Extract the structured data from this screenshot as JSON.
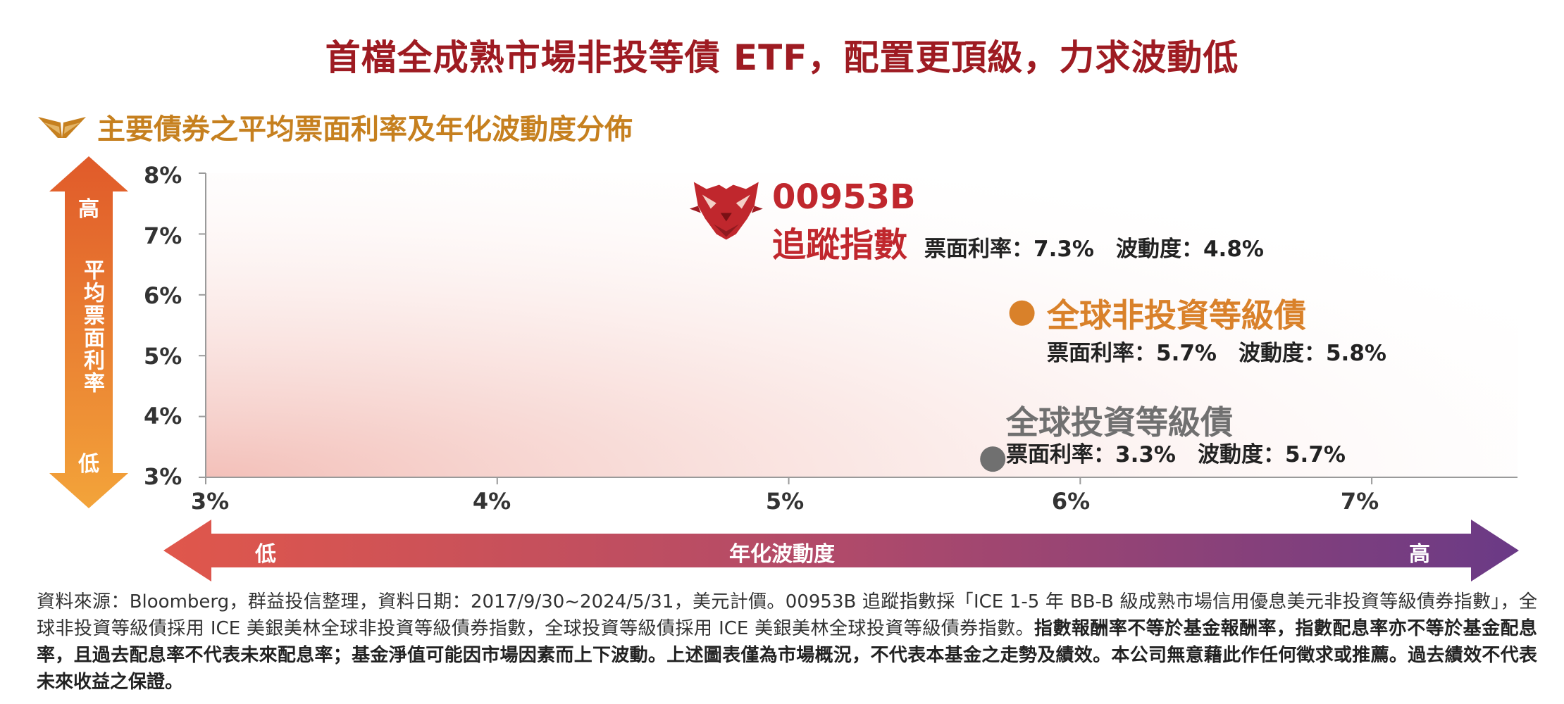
{
  "header": {
    "title": "首檔全成熟市場非投等債 ETF，配置更頂級，力求波動低",
    "subtitle": "主要債券之平均票面利率及年化波動度分佈"
  },
  "axes": {
    "y_label": "平均票面利率",
    "y_high": "高",
    "y_low": "低",
    "x_label": "年化波動度",
    "x_low": "低",
    "x_high": "高"
  },
  "chart_data": {
    "type": "scatter",
    "title": "主要債券之平均票面利率及年化波動度分佈",
    "xlabel": "年化波動度",
    "ylabel": "平均票面利率",
    "xlim": [
      3,
      7.5
    ],
    "ylim": [
      3,
      8
    ],
    "x_ticks": [
      "3%",
      "4%",
      "5%",
      "6%",
      "7%"
    ],
    "y_ticks": [
      "8%",
      "7%",
      "6%",
      "5%",
      "4%",
      "3%"
    ],
    "grid": false,
    "points": [
      {
        "name": "追蹤指數",
        "code": "00953B",
        "x": 4.8,
        "y": 7.3,
        "stat": "票面利率：7.3%　波動度：4.8%",
        "color": "#c0272d",
        "marker": "tiger-logo-icon"
      },
      {
        "name": "全球非投資等級債",
        "x": 5.8,
        "y": 5.7,
        "stat": "票面利率：5.7%　波動度：5.8%",
        "color": "#d9812a",
        "marker": "circle"
      },
      {
        "name": "全球投資等級債",
        "x": 5.7,
        "y": 3.3,
        "stat": "票面利率：3.3%　波動度：5.7%",
        "color": "#707070",
        "marker": "circle"
      }
    ]
  },
  "colors": {
    "title": "#9e1b22",
    "subtitle": "#c6801f",
    "y_arrow_top": "#e05a2a",
    "y_arrow_bottom": "#f3a43a",
    "x_arrow_left": "#e0574b",
    "x_arrow_right": "#6a3a86"
  },
  "footnote": {
    "normal": "資料來源：Bloomberg，群益投信整理，資料日期：2017/9/30~2024/5/31，美元計價。00953B 追蹤指數採「ICE 1-5 年 BB-B 級成熟市場信用優息美元非投資等級債券指數」，全球非投資等級債採用 ICE 美銀美林全球非投資等級債券指數，全球投資等級債採用 ICE 美銀美林全球投資等級債券指數。",
    "bold": "指數報酬率不等於基金報酬率，指數配息率亦不等於基金配息率，且過去配息率不代表未來配息率；基金淨值可能因市場因素而上下波動。上述圖表僅為市場概況，不代表本基金之走勢及績效。本公司無意藉此作任何徵求或推薦。過去績效不代表未來收益之保證。"
  }
}
